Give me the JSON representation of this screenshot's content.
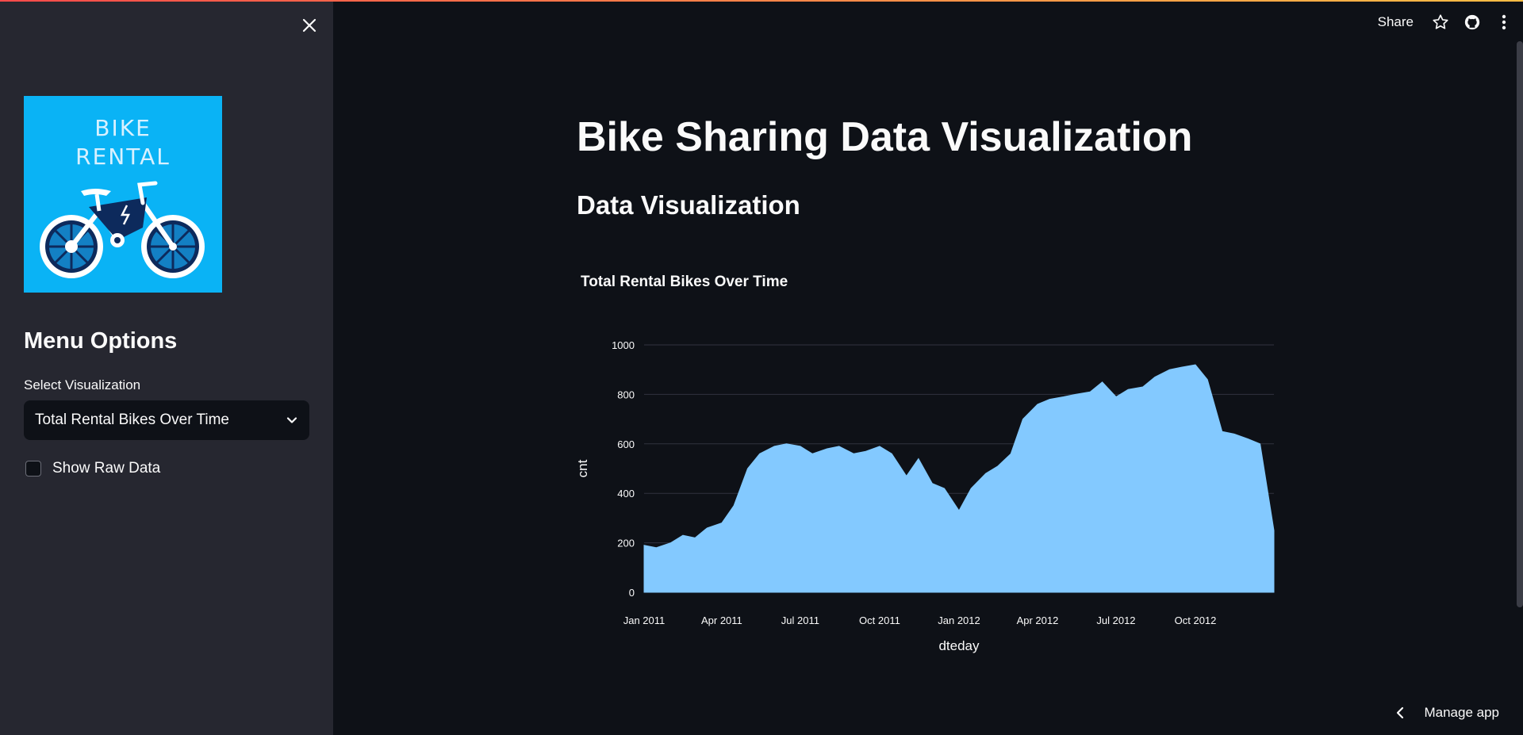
{
  "sidebar": {
    "logo": {
      "line1": "BIKE",
      "line2": "RENTAL",
      "background": "#0ab3f5"
    },
    "menu_title": "Menu Options",
    "select_label": "Select Visualization",
    "select_value": "Total Rental Bikes Over Time",
    "checkbox_label": "Show Raw Data",
    "checkbox_checked": false,
    "close_icon": "close-icon"
  },
  "header": {
    "share_label": "Share",
    "icons": [
      "star-icon",
      "github-icon",
      "kebab-menu-icon"
    ]
  },
  "main": {
    "title": "Bike Sharing Data Visualization",
    "subtitle": "Data Visualization"
  },
  "chart_data": {
    "type": "area",
    "title": "Total Rental Bikes Over Time",
    "xlabel": "dteday",
    "ylabel": "cnt",
    "ylim": [
      0,
      1000
    ],
    "yticks": [
      0,
      200,
      400,
      600,
      800,
      1000
    ],
    "xlim": [
      "2011-01-01",
      "2012-12-31"
    ],
    "xticks": [
      "2011-01-01",
      "2011-04-01",
      "2011-07-01",
      "2011-10-01",
      "2012-01-01",
      "2012-04-01",
      "2012-07-01",
      "2012-10-01"
    ],
    "xtick_labels": [
      "Jan 2011",
      "Apr 2011",
      "Jul 2011",
      "Oct 2011",
      "Jan 2012",
      "Apr 2012",
      "Jul 2012",
      "Oct 2012"
    ],
    "grid": true,
    "color": "#83c9ff",
    "x": [
      "2011-01-01",
      "2011-01-15",
      "2011-02-01",
      "2011-02-15",
      "2011-03-01",
      "2011-03-15",
      "2011-04-01",
      "2011-04-15",
      "2011-05-01",
      "2011-05-15",
      "2011-06-01",
      "2011-06-15",
      "2011-07-01",
      "2011-07-15",
      "2011-08-01",
      "2011-08-15",
      "2011-09-01",
      "2011-09-15",
      "2011-10-01",
      "2011-10-15",
      "2011-11-01",
      "2011-11-15",
      "2011-12-01",
      "2011-12-15",
      "2012-01-01",
      "2012-01-15",
      "2012-02-01",
      "2012-02-15",
      "2012-03-01",
      "2012-03-15",
      "2012-04-01",
      "2012-04-15",
      "2012-05-01",
      "2012-05-15",
      "2012-06-01",
      "2012-06-15",
      "2012-07-01",
      "2012-07-15",
      "2012-08-01",
      "2012-08-15",
      "2012-09-01",
      "2012-09-15",
      "2012-10-01",
      "2012-10-15",
      "2012-11-01",
      "2012-11-15",
      "2012-12-01",
      "2012-12-15",
      "2012-12-31"
    ],
    "y": [
      190,
      180,
      200,
      230,
      220,
      260,
      280,
      350,
      500,
      560,
      590,
      600,
      590,
      560,
      580,
      590,
      560,
      570,
      590,
      560,
      470,
      540,
      440,
      420,
      330,
      420,
      480,
      510,
      560,
      700,
      760,
      780,
      790,
      800,
      810,
      850,
      790,
      820,
      830,
      870,
      900,
      910,
      920,
      860,
      650,
      640,
      620,
      600,
      250
    ]
  },
  "manage_app": {
    "label": "Manage app"
  }
}
